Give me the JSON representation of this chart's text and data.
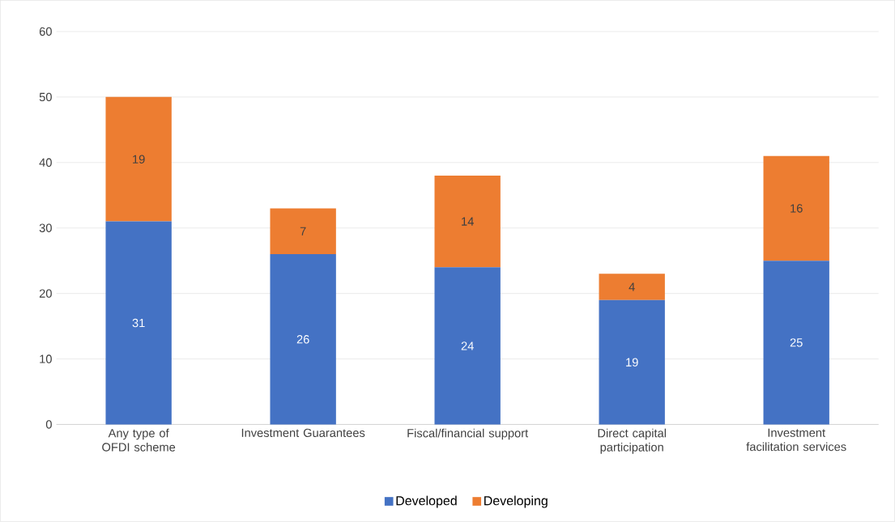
{
  "chart_data": {
    "type": "bar",
    "stacked": true,
    "categories": [
      "Any type of OFDI scheme",
      "Investment Guarantees",
      "Fiscal/financial support",
      "Direct capital participation",
      "Investment facilitation services"
    ],
    "series": [
      {
        "name": "Developed",
        "color": "#4472c4",
        "values": [
          31,
          26,
          24,
          19,
          25
        ]
      },
      {
        "name": "Developing",
        "color": "#ed7d31",
        "values": [
          19,
          7,
          14,
          4,
          16
        ]
      }
    ],
    "ylim": [
      0,
      60
    ],
    "yticks": [
      0,
      10,
      20,
      30,
      40,
      50,
      60
    ],
    "grid": "y",
    "legend": "bottom",
    "data_labels": true
  }
}
